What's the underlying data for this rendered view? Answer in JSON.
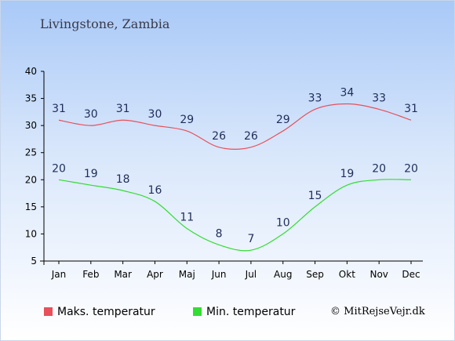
{
  "chart_data": {
    "type": "line",
    "title": "Livingstone, Zambia",
    "categories": [
      "Jan",
      "Feb",
      "Mar",
      "Apr",
      "Maj",
      "Jun",
      "Jul",
      "Aug",
      "Sep",
      "Okt",
      "Nov",
      "Dec"
    ],
    "ylim": [
      5,
      40
    ],
    "yticks": [
      5,
      10,
      15,
      20,
      25,
      30,
      35,
      40
    ],
    "grid": false,
    "legend_position": "bottom",
    "series": [
      {
        "name": "Maks. temperatur",
        "color": "#e8505b",
        "values": [
          31,
          30,
          31,
          30,
          29,
          26,
          26,
          29,
          33,
          34,
          33,
          31
        ]
      },
      {
        "name": "Min. temperatur",
        "color": "#33dd33",
        "values": [
          20,
          19,
          18,
          16,
          11,
          8,
          7,
          10,
          15,
          19,
          20,
          20
        ]
      }
    ]
  },
  "credit": "© MitRejseVejr.dk"
}
